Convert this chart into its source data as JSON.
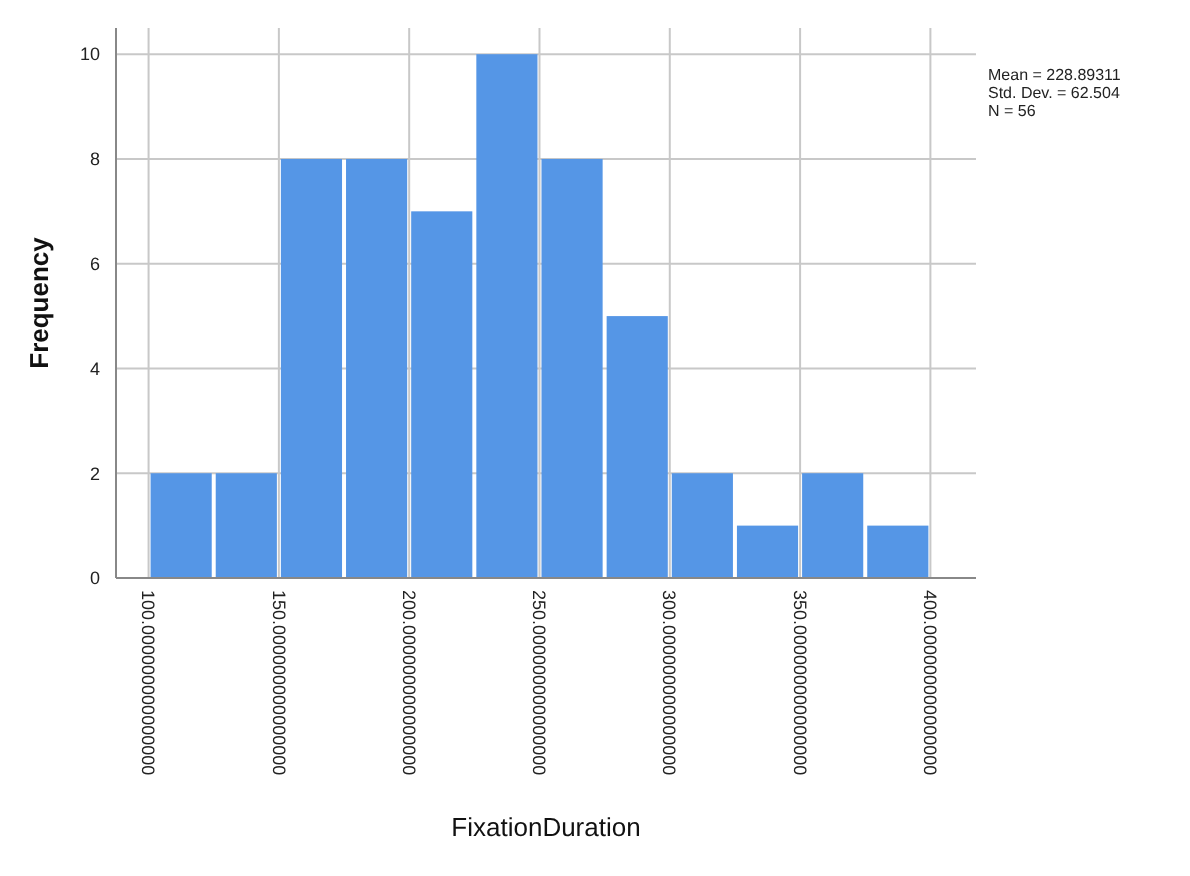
{
  "chart_data": {
    "type": "histogram",
    "xlabel": "FixationDuration",
    "ylabel": "Frequency",
    "bins": [
      100,
      125,
      150,
      175,
      200,
      225,
      250,
      275,
      300,
      325,
      350,
      375,
      400
    ],
    "values": [
      2,
      2,
      8,
      8,
      7,
      10,
      8,
      5,
      2,
      1,
      2,
      1
    ],
    "color": "#5596e6",
    "xlim": [
      87.5,
      417.5
    ],
    "xticks": [
      {
        "value": 100,
        "label": "100.000000000000000"
      },
      {
        "value": 150,
        "label": "150.000000000000000"
      },
      {
        "value": 200,
        "label": "200.000000000000000"
      },
      {
        "value": 250,
        "label": "250.000000000000000"
      },
      {
        "value": 300,
        "label": "300.000000000000000"
      },
      {
        "value": 350,
        "label": "350.000000000000000"
      },
      {
        "value": 400,
        "label": "400.000000000000000"
      }
    ],
    "ylim": [
      0,
      10.5
    ],
    "yticks": [
      0,
      2,
      4,
      6,
      8,
      10
    ],
    "grid": true,
    "annotations": [
      "Mean = 228.89311",
      "Std. Dev. = 62.504",
      "N = 56"
    ]
  }
}
